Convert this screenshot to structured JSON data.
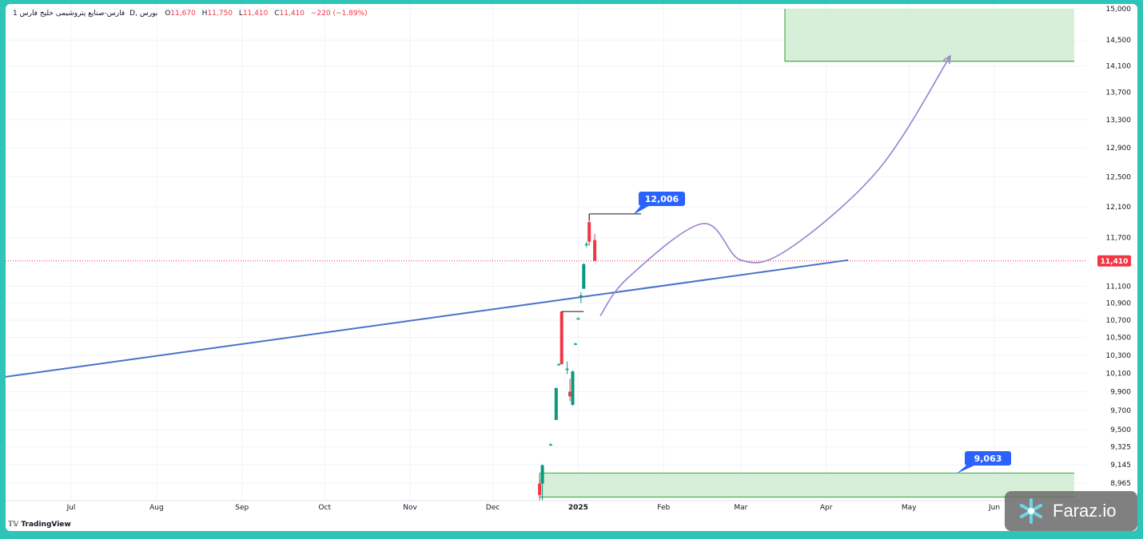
{
  "legend": {
    "number": "1",
    "symbol": "فارس-صنایع پتروشیمی خلیج فارس",
    "interval": "D",
    "exchange": "بورس",
    "open_label": "O",
    "open": "11,670",
    "high_label": "H",
    "high": "11,750",
    "low_label": "L",
    "low": "11,410",
    "close_label": "C",
    "close": "11,410",
    "change": "−220 (−1.89%)"
  },
  "branding": {
    "tradingview": "TradingView",
    "watermark": "Faraz.io"
  },
  "colors": {
    "up": "#089981",
    "down": "#f23645",
    "trendline": "#4a72c8",
    "projection": "#9b7fd4",
    "zone_fill": "#d7efd8",
    "zone_border": "#4caf50",
    "price_badge": "#f23645",
    "callout": "#2962ff"
  },
  "chart_data": {
    "type": "candlestick",
    "instrument": "فارس-صنایع پتروشیمی خلیج فارس",
    "interval": "D",
    "x_axis_labels": [
      {
        "label": "Jul",
        "date": "2024-07-01"
      },
      {
        "label": "Aug",
        "date": "2024-08-01"
      },
      {
        "label": "Sep",
        "date": "2024-09-01"
      },
      {
        "label": "Oct",
        "date": "2024-10-01"
      },
      {
        "label": "Nov",
        "date": "2024-11-01"
      },
      {
        "label": "Dec",
        "date": "2024-12-01"
      },
      {
        "label": "2025",
        "date": "2025-01-01",
        "bold": true
      },
      {
        "label": "Feb",
        "date": "2025-02-01"
      },
      {
        "label": "Mar",
        "date": "2025-03-01"
      },
      {
        "label": "Apr",
        "date": "2025-04-01"
      },
      {
        "label": "May",
        "date": "2025-05-01"
      },
      {
        "label": "Jun",
        "date": "2025-06-01"
      }
    ],
    "y_axis_labels": [
      "15,000",
      "14,500",
      "14,100",
      "13,700",
      "13,300",
      "12,900",
      "12,500",
      "12,100",
      "11,700",
      "11,100",
      "10,900",
      "10,700",
      "10,500",
      "10,300",
      "10,100",
      "9,900",
      "9,700",
      "9,500",
      "9,325",
      "9,145",
      "8,965"
    ],
    "y_axis_scale": "log",
    "candles": [
      {
        "date": "2024-12-18",
        "o": 8960,
        "h": 9000,
        "l": 8800,
        "c": 8850
      },
      {
        "date": "2024-12-19",
        "o": 8960,
        "h": 9150,
        "l": 8800,
        "c": 9140
      },
      {
        "date": "2024-12-22",
        "o": 9350,
        "h": 9360,
        "l": 9340,
        "c": 9350
      },
      {
        "date": "2024-12-24",
        "o": 9600,
        "h": 9940,
        "l": 9600,
        "c": 9940
      },
      {
        "date": "2024-12-25",
        "o": 10200,
        "h": 10210,
        "l": 10190,
        "c": 10200
      },
      {
        "date": "2024-12-26",
        "o": 10800,
        "h": 10800,
        "l": 10200,
        "c": 10200
      },
      {
        "date": "2024-12-28",
        "o": 10150,
        "h": 10230,
        "l": 10090,
        "c": 10150
      },
      {
        "date": "2024-12-29",
        "o": 9900,
        "h": 10040,
        "l": 9800,
        "c": 9850
      },
      {
        "date": "2024-12-30",
        "o": 9760,
        "h": 10130,
        "l": 9750,
        "c": 10120
      },
      {
        "date": "2024-12-31",
        "o": 10430,
        "h": 10440,
        "l": 10420,
        "c": 10430
      },
      {
        "date": "2025-01-01",
        "o": 10720,
        "h": 10730,
        "l": 10710,
        "c": 10720
      },
      {
        "date": "2025-01-02",
        "o": 10980,
        "h": 11030,
        "l": 10900,
        "c": 10990
      },
      {
        "date": "2025-01-03",
        "o": 11070,
        "h": 11380,
        "l": 11070,
        "c": 11370
      },
      {
        "date": "2025-01-04",
        "o": 11610,
        "h": 11650,
        "l": 11580,
        "c": 11620
      },
      {
        "date": "2025-01-05",
        "o": 11900,
        "h": 12006,
        "l": 11600,
        "c": 11650
      },
      {
        "date": "2025-01-07",
        "o": 11670,
        "h": 11750,
        "l": 11410,
        "c": 11410
      }
    ],
    "current_price": "11,410",
    "annotations": [
      {
        "type": "price_label",
        "value": "12,006"
      },
      {
        "type": "price_label",
        "value": "9,063"
      }
    ],
    "trendline": [
      {
        "date": "2024-06-07",
        "price": 10060
      },
      {
        "date": "2025-04-09",
        "price": 11420
      }
    ],
    "projection_path": [
      {
        "date": "2025-01-09",
        "price": 10750
      },
      {
        "date": "2025-01-19",
        "price": 11200
      },
      {
        "date": "2025-02-15",
        "price": 11880
      },
      {
        "date": "2025-03-01",
        "price": 11420
      },
      {
        "date": "2025-03-18",
        "price": 11550
      },
      {
        "date": "2025-04-20",
        "price": 12600
      },
      {
        "date": "2025-05-16",
        "price": 14250
      }
    ],
    "zones": [
      {
        "from": "2025-03-17",
        "to": "2025-06-30",
        "low": 14170,
        "high": 15000
      },
      {
        "from": "2024-12-18",
        "to": "2025-06-30",
        "low": 8830,
        "high": 9063
      }
    ],
    "grid": true,
    "legend_position": "top-left"
  }
}
